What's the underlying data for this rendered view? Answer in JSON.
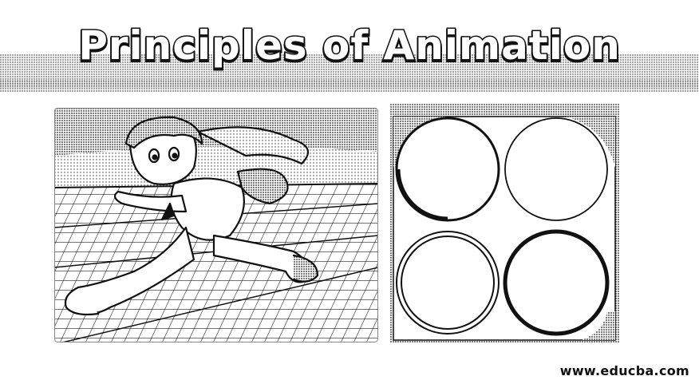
{
  "title": "Principles of Animation",
  "website": "www.educba.com",
  "colors": {
    "ink": "#111111",
    "paper": "#ffffff"
  },
  "illustrations": {
    "left": "running-character-illustration",
    "right": "squash-and-stretch-circles-illustration"
  }
}
